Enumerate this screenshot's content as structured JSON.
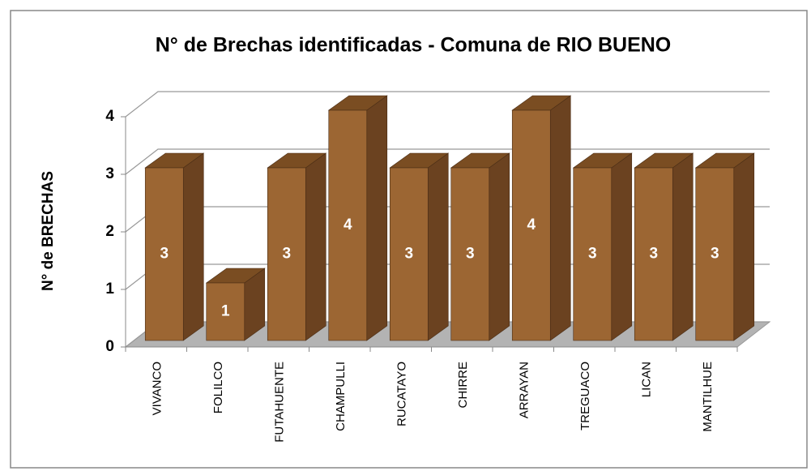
{
  "chart_data": {
    "type": "bar3d",
    "title": "N° de Brechas identificadas - Comuna de RIO BUENO",
    "ylabel": "N° de BRECHAS",
    "categories": [
      "VIVANCO",
      "FOLILCO",
      "FUTAHUENTE",
      "CHAMPULLI",
      "RUCATAYO",
      "CHIRRE",
      "ARRAYAN",
      "TREGUACO",
      "LICAN",
      "MANTILHUE"
    ],
    "values": [
      3,
      1,
      3,
      4,
      3,
      3,
      4,
      3,
      3,
      3
    ],
    "color": "#9c6633",
    "ylim": [
      0,
      4
    ],
    "yticks": [
      0,
      1,
      2,
      3,
      4
    ],
    "grid": true
  }
}
